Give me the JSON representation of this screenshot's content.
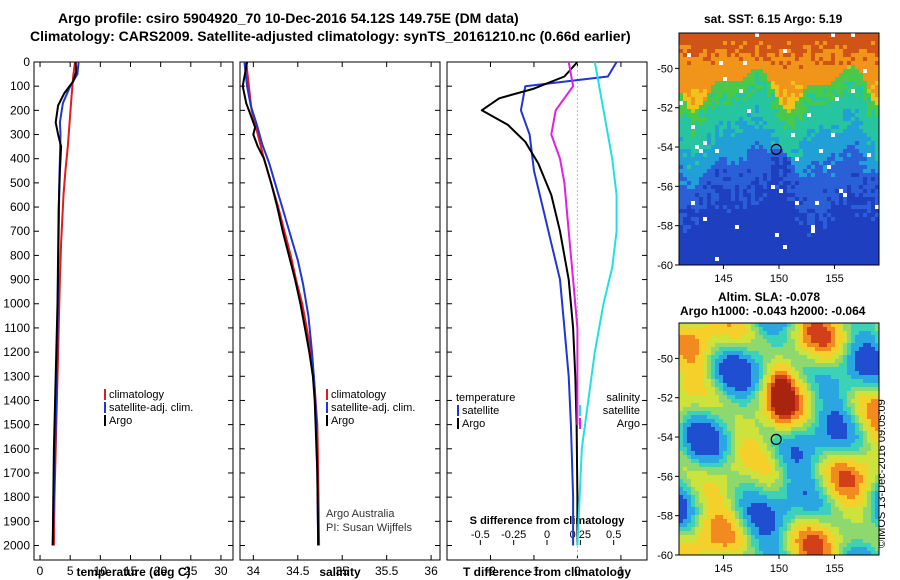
{
  "header": {
    "line1": "Argo profile: csiro 5904920_70 10-Dec-2016 54.12S 149.75E (DM data)",
    "line2": "Climatology: CARS2009. Satellite-adjusted climatology: synTS_20161210.nc (0.66d earlier)"
  },
  "colors": {
    "climatology": "#e41a1c",
    "satellite": "#1f35d6",
    "argo": "#000000",
    "satellite_salinity": "#22e0e0",
    "argo_salinity": "#e020e0"
  },
  "depth_ticks": [
    0,
    100,
    200,
    300,
    400,
    500,
    600,
    700,
    800,
    900,
    1000,
    1100,
    1200,
    1300,
    1400,
    1500,
    1600,
    1700,
    1800,
    1900,
    2000
  ],
  "chart_data": [
    {
      "type": "line",
      "panel": "temperature",
      "xlabel": "temperature (deg C)",
      "xlim": [
        -1,
        32
      ],
      "ylim": [
        2060,
        0
      ],
      "xticks": [
        0,
        5,
        10,
        15,
        20,
        25,
        30
      ],
      "legend": [
        {
          "label": "climatology",
          "color_key": "climatology"
        },
        {
          "label": "satellite-adj. clim.",
          "color_key": "satellite"
        },
        {
          "label": "Argo",
          "color_key": "argo"
        }
      ],
      "series": [
        {
          "name": "climatology",
          "color_key": "climatology",
          "points": [
            [
              5.8,
              0
            ],
            [
              5.5,
              60
            ],
            [
              5.2,
              150
            ],
            [
              4.9,
              250
            ],
            [
              4.6,
              350
            ],
            [
              4.2,
              450
            ],
            [
              3.9,
              550
            ],
            [
              3.7,
              650
            ],
            [
              3.5,
              750
            ],
            [
              3.3,
              900
            ],
            [
              3.2,
              1000
            ],
            [
              3.0,
              1200
            ],
            [
              2.8,
              1400
            ],
            [
              2.6,
              1600
            ],
            [
              2.4,
              1800
            ],
            [
              2.3,
              2000
            ]
          ]
        },
        {
          "name": "satellite-adj. clim.",
          "color_key": "satellite",
          "points": [
            [
              6.4,
              0
            ],
            [
              6.2,
              50
            ],
            [
              5.0,
              100
            ],
            [
              3.8,
              170
            ],
            [
              3.3,
              250
            ],
            [
              3.4,
              300
            ],
            [
              3.3,
              400
            ],
            [
              3.2,
              500
            ],
            [
              3.1,
              700
            ],
            [
              3.0,
              900
            ],
            [
              2.9,
              1100
            ],
            [
              2.8,
              1300
            ],
            [
              2.6,
              1500
            ],
            [
              2.4,
              1700
            ],
            [
              2.2,
              1900
            ],
            [
              2.1,
              2000
            ]
          ]
        },
        {
          "name": "Argo",
          "color_key": "argo",
          "points": [
            [
              5.9,
              0
            ],
            [
              6.0,
              40
            ],
            [
              5.5,
              80
            ],
            [
              4.0,
              130
            ],
            [
              3.0,
              180
            ],
            [
              2.6,
              250
            ],
            [
              3.0,
              300
            ],
            [
              3.5,
              350
            ],
            [
              3.3,
              450
            ],
            [
              3.1,
              600
            ],
            [
              3.0,
              800
            ],
            [
              2.9,
              1000
            ],
            [
              2.7,
              1200
            ],
            [
              2.5,
              1400
            ],
            [
              2.3,
              1600
            ],
            [
              2.2,
              1800
            ],
            [
              2.1,
              2000
            ]
          ]
        }
      ]
    },
    {
      "type": "line",
      "panel": "salinity",
      "xlabel": "salinity",
      "xlim": [
        33.85,
        36.1
      ],
      "ylim": [
        2060,
        0
      ],
      "xticks": [
        34,
        34.5,
        35,
        35.5,
        36
      ],
      "tick_labels": [
        "34",
        "34.5",
        "35",
        "35.5",
        "36"
      ],
      "legend": [
        {
          "label": "climatology",
          "color_key": "climatology"
        },
        {
          "label": "satellite-adj. clim.",
          "color_key": "satellite"
        },
        {
          "label": "Argo",
          "color_key": "argo"
        }
      ],
      "annotation": [
        "Argo Australia",
        "PI: Susan Wijffels"
      ],
      "series": [
        {
          "name": "climatology",
          "color_key": "climatology",
          "points": [
            [
              33.92,
              0
            ],
            [
              33.95,
              100
            ],
            [
              33.98,
              200
            ],
            [
              34.05,
              300
            ],
            [
              34.12,
              400
            ],
            [
              34.2,
              500
            ],
            [
              34.28,
              600
            ],
            [
              34.35,
              700
            ],
            [
              34.42,
              800
            ],
            [
              34.48,
              900
            ],
            [
              34.55,
              1000
            ],
            [
              34.6,
              1100
            ],
            [
              34.65,
              1200
            ],
            [
              34.68,
              1300
            ],
            [
              34.7,
              1400
            ],
            [
              34.72,
              1500
            ],
            [
              34.73,
              1700
            ],
            [
              34.74,
              2000
            ]
          ]
        },
        {
          "name": "satellite-adj. clim.",
          "color_key": "satellite",
          "points": [
            [
              33.9,
              0
            ],
            [
              33.93,
              100
            ],
            [
              33.97,
              180
            ],
            [
              34.04,
              260
            ],
            [
              34.1,
              340
            ],
            [
              34.18,
              420
            ],
            [
              34.26,
              520
            ],
            [
              34.34,
              620
            ],
            [
              34.42,
              720
            ],
            [
              34.5,
              820
            ],
            [
              34.56,
              920
            ],
            [
              34.62,
              1050
            ],
            [
              34.66,
              1200
            ],
            [
              34.69,
              1350
            ],
            [
              34.71,
              1500
            ],
            [
              34.72,
              1700
            ],
            [
              34.73,
              2000
            ]
          ]
        },
        {
          "name": "Argo",
          "color_key": "argo",
          "points": [
            [
              33.93,
              0
            ],
            [
              33.88,
              100
            ],
            [
              33.92,
              170
            ],
            [
              33.97,
              220
            ],
            [
              34.02,
              270
            ],
            [
              34.0,
              300
            ],
            [
              34.05,
              350
            ],
            [
              34.12,
              400
            ],
            [
              34.2,
              500
            ],
            [
              34.27,
              600
            ],
            [
              34.33,
              700
            ],
            [
              34.4,
              800
            ],
            [
              34.47,
              900
            ],
            [
              34.53,
              1000
            ],
            [
              34.58,
              1100
            ],
            [
              34.63,
              1200
            ],
            [
              34.67,
              1300
            ],
            [
              34.69,
              1400
            ],
            [
              34.7,
              1500
            ],
            [
              34.72,
              1700
            ],
            [
              34.73,
              2000
            ]
          ]
        }
      ]
    },
    {
      "type": "line",
      "panel": "differences",
      "xlabel": "T difference from climatology",
      "xlabel_top": "S difference from climatology",
      "xlim": [
        -3,
        1.6
      ],
      "ylim": [
        2060,
        0
      ],
      "xticks": [
        -2,
        -1,
        0,
        1
      ],
      "top_ticks": [
        -0.5,
        -0.25,
        0,
        0.25,
        0.5
      ],
      "top_tick_labels": [
        "-0.5",
        "-0.25",
        "0",
        "0.25",
        "0.5"
      ],
      "legend": [
        {
          "label": "temperature"
        },
        {
          "label": "satellite",
          "color_key": "satellite"
        },
        {
          "label": "Argo",
          "color_key": "argo"
        },
        {
          "label": "salinity"
        },
        {
          "label": "satellite",
          "color_key": "satellite_salinity"
        },
        {
          "label": "Argo",
          "color_key": "argo_salinity"
        }
      ],
      "series": [
        {
          "name": "T satellite",
          "color_key": "satellite",
          "points": [
            [
              0.9,
              0
            ],
            [
              0.7,
              60
            ],
            [
              -1.2,
              100
            ],
            [
              -1.3,
              200
            ],
            [
              -1.1,
              300
            ],
            [
              -1.0,
              450
            ],
            [
              -0.8,
              600
            ],
            [
              -0.6,
              750
            ],
            [
              -0.4,
              900
            ],
            [
              -0.3,
              1100
            ],
            [
              -0.2,
              1300
            ],
            [
              -0.15,
              1500
            ],
            [
              -0.1,
              1800
            ],
            [
              -0.1,
              2000
            ]
          ]
        },
        {
          "name": "T Argo",
          "color_key": "argo",
          "points": [
            [
              0.0,
              0
            ],
            [
              -0.3,
              60
            ],
            [
              -1.0,
              110
            ],
            [
              -1.8,
              150
            ],
            [
              -2.2,
              200
            ],
            [
              -1.6,
              260
            ],
            [
              -1.2,
              330
            ],
            [
              -0.9,
              420
            ],
            [
              -0.6,
              550
            ],
            [
              -0.4,
              700
            ],
            [
              -0.2,
              900
            ],
            [
              -0.1,
              1100
            ],
            [
              -0.05,
              1300
            ],
            [
              -0.02,
              1500
            ],
            [
              0.0,
              1800
            ],
            [
              0.0,
              2000
            ]
          ]
        },
        {
          "name": "S satellite",
          "color_key": "satellite_salinity",
          "points": [
            [
              0.4,
              0
            ],
            [
              0.5,
              100
            ],
            [
              0.65,
              250
            ],
            [
              0.8,
              400
            ],
            [
              0.9,
              550
            ],
            [
              0.9,
              700
            ],
            [
              0.8,
              850
            ],
            [
              0.6,
              1000
            ],
            [
              0.4,
              1200
            ],
            [
              0.25,
              1400
            ],
            [
              0.1,
              1600
            ],
            [
              0.05,
              1800
            ],
            [
              0.0,
              2000
            ]
          ]
        },
        {
          "name": "S Argo",
          "color_key": "argo_salinity",
          "points": [
            [
              -0.2,
              0
            ],
            [
              -0.1,
              100
            ],
            [
              -0.5,
              200
            ],
            [
              -0.6,
              300
            ],
            [
              -0.4,
              400
            ],
            [
              -0.3,
              500
            ],
            [
              -0.2,
              700
            ],
            [
              -0.1,
              900
            ],
            [
              0.0,
              1100
            ],
            [
              0.0,
              1300
            ],
            [
              0.0,
              1500
            ]
          ]
        }
      ]
    },
    {
      "type": "heatmap",
      "panel": "sst-map",
      "title": "sat. SST: 6.15 Argo: 5.19",
      "xlim": [
        141,
        159
      ],
      "ylim": [
        -60,
        -48.2
      ],
      "xticks": [
        145,
        150,
        155
      ],
      "yticks": [
        -50,
        -52,
        -54,
        -56,
        -58,
        -60
      ],
      "marker": {
        "lon": 149.75,
        "lat": -54.12
      }
    },
    {
      "type": "heatmap",
      "panel": "sla-map",
      "title": "Altim. SLA: -0.078",
      "subtitle": "Argo h1000: -0.043 h2000: -0.064",
      "xlim": [
        141,
        159
      ],
      "ylim": [
        -60,
        -48.2
      ],
      "xticks": [
        145,
        150,
        155
      ],
      "yticks": [
        -50,
        -52,
        -54,
        -56,
        -58,
        -60
      ],
      "marker": {
        "lon": 149.75,
        "lat": -54.12
      }
    }
  ],
  "credit": "©IMOS 13-Dec-2016 09:05:09"
}
